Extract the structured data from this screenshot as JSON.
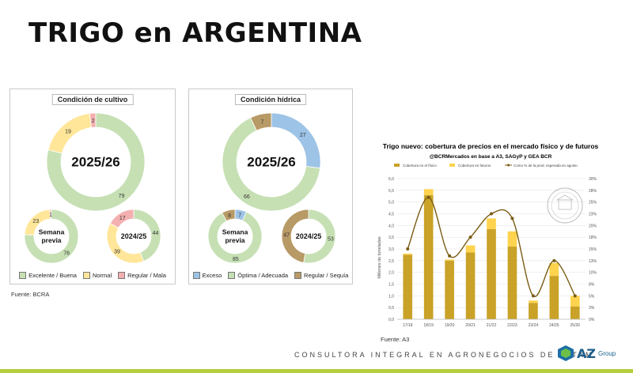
{
  "title": "TRIGO en ARGENTINA",
  "colors": {
    "excelente": "#c6e0b4",
    "normal": "#ffe699",
    "mala": "#f4b0b0",
    "exceso": "#9dc3e6",
    "optima": "#c6e0b4",
    "sequia": "#b89a66",
    "bar_fisico": "#c9a227",
    "bar_futuros": "#ffd34d",
    "line": "#7a5c14"
  },
  "cultivo": {
    "title": "Condición de cultivo",
    "main": {
      "label": "2025/26",
      "values": [
        79,
        19,
        2
      ]
    },
    "prev": {
      "label": "Semana previa",
      "values": [
        76,
        23,
        1
      ]
    },
    "year": {
      "label": "2024/25",
      "values": [
        44,
        39,
        17
      ]
    },
    "legend": [
      "Excelente / Buena",
      "Normal",
      "Regular / Mala"
    ]
  },
  "hidrica": {
    "title": "Condición hídrica",
    "main": {
      "label": "2025/26",
      "values": [
        27,
        66,
        7
      ]
    },
    "prev": {
      "label": "Semana previa",
      "values": [
        7,
        85,
        8
      ]
    },
    "year": {
      "label": "2024/25",
      "values": [
        0,
        53,
        47
      ]
    },
    "legend": [
      "Exceso",
      "Óptima / Adecuada",
      "Regular / Sequía"
    ]
  },
  "fuente1": "Fuente: BCRA",
  "fuente2": "Fuente: A3",
  "footer": "CONSULTORA INTEGRAL EN AGRONEGOCIOS DE LATAM",
  "logo": {
    "az": "AZ",
    "group": "Group"
  },
  "chart_data": {
    "type": "bar",
    "title": "Trigo nuevo: cobertura de precios en el mercado físico y de futuros",
    "subtitle": "@BCRMercados en base a A3, SAGyP y GEA BCR",
    "ylabel": "Millones de toneladas",
    "categories": [
      "17/18",
      "18/19",
      "19/20",
      "20/21",
      "21/22",
      "22/23",
      "23/24",
      "24/25",
      "25/26"
    ],
    "ylim": [
      0,
      6.0
    ],
    "yticks": [
      "0,0",
      "0,5",
      "1,0",
      "1,5",
      "2,0",
      "2,5",
      "3,0",
      "3,5",
      "4,0",
      "4,5",
      "5,0",
      "5,5",
      "6,0"
    ],
    "y2lim": [
      0,
      30
    ],
    "y2ticks": [
      "0%",
      "3%",
      "5%",
      "8%",
      "10%",
      "13%",
      "15%",
      "18%",
      "20%",
      "23%",
      "25%",
      "28%",
      "30%"
    ],
    "series": [
      {
        "name": "Cobertura en el físico",
        "values": [
          2.75,
          5.3,
          2.5,
          2.85,
          3.85,
          3.1,
          0.7,
          1.85,
          0.55
        ]
      },
      {
        "name": "Cobertura en futuros",
        "values": [
          0.05,
          0.25,
          0.05,
          0.3,
          0.45,
          0.65,
          0.1,
          0.55,
          0.45
        ]
      },
      {
        "name": "Como % de la prod. esperada en agosto",
        "values": [
          15,
          26,
          13.5,
          17.5,
          22.5,
          21.5,
          5,
          12.5,
          5
        ]
      }
    ]
  }
}
